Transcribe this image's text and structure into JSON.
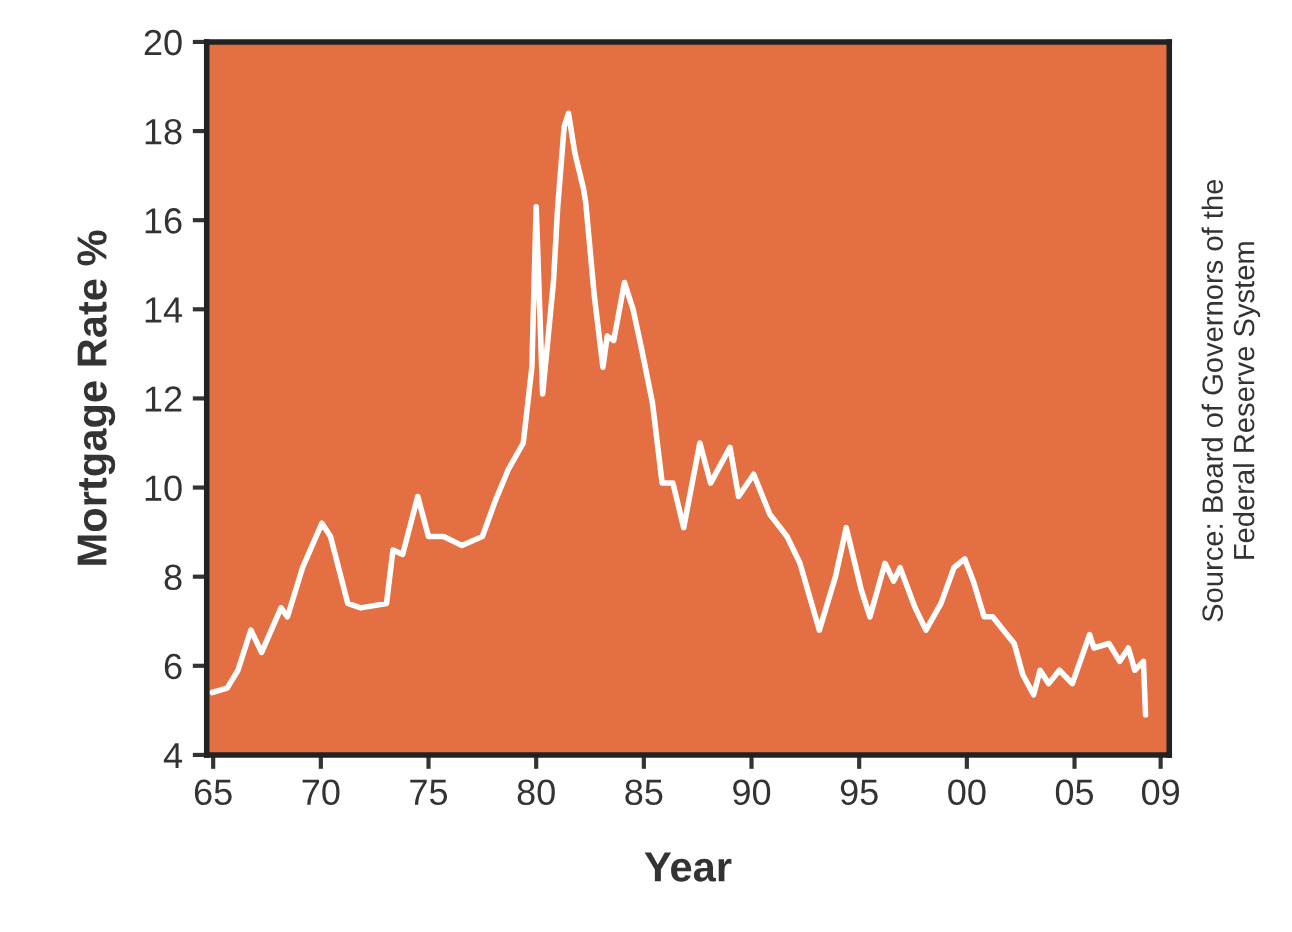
{
  "chart_data": {
    "type": "line",
    "xlabel": "Year",
    "ylabel": "Mortgage Rate %",
    "annotations": [
      "Source: Board of Governors of the\nFederal Reserve System"
    ],
    "x": [
      1964.95,
      1965.65,
      1966.15,
      1966.75,
      1967.25,
      1968.15,
      1968.45,
      1969.15,
      1970.05,
      1970.45,
      1971.25,
      1971.85,
      1973.05,
      1973.35,
      1973.8,
      1974.5,
      1975.0,
      1975.7,
      1976.55,
      1977.5,
      1978.1,
      1978.7,
      1979.4,
      1979.8,
      1980.0,
      1980.3,
      1980.8,
      1981.0,
      1981.3,
      1981.5,
      1981.8,
      1982.2,
      1982.3,
      1982.7,
      1983.1,
      1983.3,
      1983.6,
      1984.1,
      1984.5,
      1984.9,
      1985.4,
      1985.85,
      1986.35,
      1986.85,
      1987.6,
      1988.1,
      1989.0,
      1989.4,
      1990.1,
      1990.85,
      1991.65,
      1992.25,
      1993.15,
      1993.9,
      1994.4,
      1995.1,
      1995.5,
      1996.2,
      1996.6,
      1996.9,
      1997.6,
      1998.1,
      1998.8,
      1999.4,
      1999.9,
      2000.3,
      2000.8,
      2001.2,
      2001.7,
      2002.2,
      2002.6,
      2003.1,
      2003.4,
      2003.8,
      2004.3,
      2004.9,
      2005.7,
      2005.9,
      2006.6,
      2007.1,
      2007.5,
      2007.8,
      2008.2,
      2008.3
    ],
    "values": [
      5.4,
      5.5,
      5.9,
      6.8,
      6.3,
      7.3,
      7.1,
      8.2,
      9.2,
      8.9,
      7.4,
      7.3,
      7.4,
      8.6,
      8.5,
      9.8,
      8.9,
      8.9,
      8.7,
      8.9,
      9.7,
      10.4,
      11.0,
      12.7,
      16.3,
      12.1,
      14.6,
      16.3,
      18.1,
      18.4,
      17.5,
      16.7,
      16.4,
      14.3,
      12.7,
      13.4,
      13.3,
      14.6,
      14.0,
      13.1,
      11.9,
      10.1,
      10.1,
      9.1,
      11.0,
      10.1,
      10.9,
      9.8,
      10.3,
      9.4,
      8.9,
      8.3,
      6.8,
      8.0,
      9.1,
      7.7,
      7.1,
      8.3,
      7.9,
      8.2,
      7.3,
      6.8,
      7.4,
      8.2,
      8.4,
      7.9,
      7.1,
      7.1,
      6.8,
      6.5,
      5.8,
      5.35,
      5.9,
      5.6,
      5.9,
      5.6,
      6.7,
      6.4,
      6.5,
      6.1,
      6.4,
      5.9,
      6.1,
      4.9
    ],
    "color": "#ffffff",
    "xlim": [
      1964.7,
      2009.4
    ],
    "xticks": [
      {
        "value": 1965,
        "label": "65"
      },
      {
        "value": 1970,
        "label": "70"
      },
      {
        "value": 1975,
        "label": "75"
      },
      {
        "value": 1980,
        "label": "80"
      },
      {
        "value": 1985,
        "label": "85"
      },
      {
        "value": 1990,
        "label": "90"
      },
      {
        "value": 1995,
        "label": "95"
      },
      {
        "value": 2000,
        "label": "00"
      },
      {
        "value": 2005,
        "label": "05"
      },
      {
        "value": 2009,
        "label": "09"
      }
    ],
    "ylim": [
      4,
      20
    ],
    "yticks": [
      4,
      6,
      8,
      10,
      12,
      14,
      16,
      18,
      20
    ],
    "grid": false,
    "marker": "none",
    "line_style": "solid"
  }
}
